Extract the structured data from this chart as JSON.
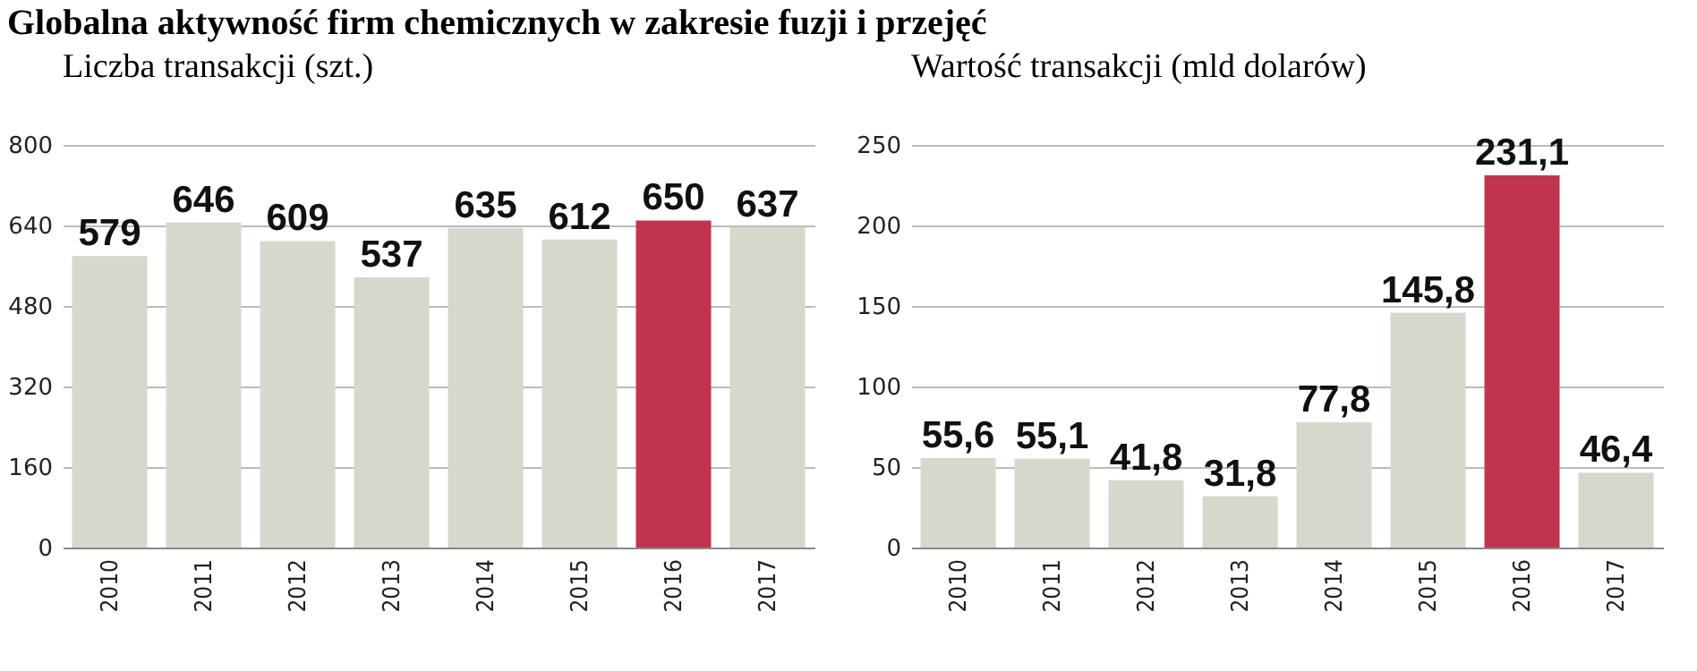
{
  "chart_data": [
    {
      "type": "bar",
      "title": "Globalna aktywność firm chemicznych w zakresie fuzji i przejęć",
      "subtitle": "Liczba transakcji (szt.)",
      "categories": [
        "2010",
        "2011",
        "2012",
        "2013",
        "2014",
        "2015",
        "2016",
        "2017"
      ],
      "values": [
        579,
        646,
        609,
        537,
        635,
        612,
        650,
        637
      ],
      "colors": [
        "#d8d7cd",
        "#d8d7cd",
        "#d8d7cd",
        "#d8d7cd",
        "#d8d7cd",
        "#d8d7cd",
        "#c1344f",
        "#d8d7cd"
      ],
      "ylim": [
        0,
        800
      ],
      "yticks": [
        0,
        160,
        320,
        480,
        640,
        800
      ],
      "grid": "y",
      "data_labels": true
    },
    {
      "type": "bar",
      "subtitle": "Wartość transakcji (mld dolarów)",
      "categories": [
        "2010",
        "2011",
        "2012",
        "2013",
        "2014",
        "2015",
        "2016",
        "2017"
      ],
      "values": [
        55.6,
        55.1,
        41.8,
        31.8,
        77.8,
        145.8,
        231.1,
        46.4
      ],
      "value_labels": [
        "55,6",
        "55,1",
        "41,8",
        "31,8",
        "77,8",
        "145,8",
        "231,1",
        "46,4"
      ],
      "colors": [
        "#d8d7cd",
        "#d8d7cd",
        "#d8d7cd",
        "#d8d7cd",
        "#d8d7cd",
        "#d8d7cd",
        "#c1344f",
        "#d8d7cd"
      ],
      "ylim": [
        0,
        250
      ],
      "yticks": [
        0,
        50,
        100,
        150,
        200,
        250
      ],
      "grid": "y"
    }
  ]
}
